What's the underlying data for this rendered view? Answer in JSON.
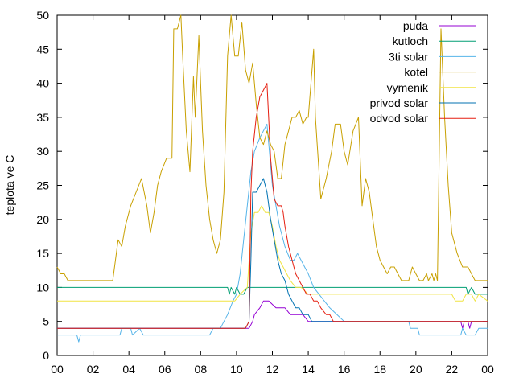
{
  "chart_data": {
    "type": "line",
    "title": "",
    "xlabel": "",
    "ylabel": "teplota ve C",
    "xlim": [
      0,
      24
    ],
    "ylim": [
      0,
      50
    ],
    "grid": false,
    "legend_position": "top-right",
    "x_tick_labels": [
      "00",
      "02",
      "04",
      "06",
      "08",
      "10",
      "12",
      "14",
      "16",
      "18",
      "20",
      "22",
      "00"
    ],
    "y_tick_labels": [
      "0",
      "5",
      "10",
      "15",
      "20",
      "25",
      "30",
      "35",
      "40",
      "45",
      "50"
    ],
    "series": [
      {
        "name": "puda",
        "color": "#9400d3",
        "points": [
          [
            0,
            4
          ],
          [
            10.7,
            4
          ],
          [
            10.9,
            5
          ],
          [
            11,
            6
          ],
          [
            11.3,
            7
          ],
          [
            11.5,
            8
          ],
          [
            11.8,
            8
          ],
          [
            12.2,
            7
          ],
          [
            12.7,
            7
          ],
          [
            13,
            6
          ],
          [
            13.7,
            6
          ],
          [
            14,
            5
          ],
          [
            22.5,
            5
          ],
          [
            22.6,
            4
          ],
          [
            22.7,
            5
          ],
          [
            22.9,
            5
          ],
          [
            23,
            4
          ],
          [
            23.1,
            5
          ],
          [
            24,
            5
          ]
        ]
      },
      {
        "name": "kutloch",
        "color": "#009e73",
        "points": [
          [
            0,
            10
          ],
          [
            9.5,
            10
          ],
          [
            9.6,
            9
          ],
          [
            9.7,
            10
          ],
          [
            9.9,
            9
          ],
          [
            10,
            10
          ],
          [
            10.2,
            9
          ],
          [
            10.4,
            9
          ],
          [
            10.6,
            10
          ],
          [
            22.8,
            10
          ],
          [
            22.9,
            9
          ],
          [
            23.1,
            10
          ],
          [
            23.3,
            9
          ],
          [
            24,
            9
          ]
        ]
      },
      {
        "name": "3ti solar",
        "color": "#56b4e9",
        "points": [
          [
            0,
            3
          ],
          [
            1.1,
            3
          ],
          [
            1.2,
            2
          ],
          [
            1.3,
            3
          ],
          [
            3.5,
            3
          ],
          [
            3.6,
            4
          ],
          [
            4.1,
            4
          ],
          [
            4.2,
            3
          ],
          [
            4.6,
            4
          ],
          [
            4.8,
            3
          ],
          [
            8.5,
            3
          ],
          [
            8.7,
            4
          ],
          [
            9.1,
            4
          ],
          [
            9.3,
            5
          ],
          [
            9.5,
            6
          ],
          [
            9.8,
            8
          ],
          [
            10,
            9
          ],
          [
            10.2,
            12
          ],
          [
            10.4,
            17
          ],
          [
            10.6,
            22
          ],
          [
            10.8,
            27
          ],
          [
            11,
            30
          ],
          [
            11.3,
            32
          ],
          [
            11.7,
            34
          ],
          [
            12,
            25
          ],
          [
            12.4,
            19
          ],
          [
            12.7,
            16
          ],
          [
            13,
            14
          ],
          [
            13.2,
            14
          ],
          [
            13.4,
            15
          ],
          [
            13.6,
            14
          ],
          [
            13.8,
            13
          ],
          [
            14,
            12
          ],
          [
            14.3,
            10
          ],
          [
            14.6,
            9
          ],
          [
            14.9,
            8
          ],
          [
            15.2,
            7
          ],
          [
            15.6,
            6
          ],
          [
            16,
            5
          ],
          [
            19.6,
            5
          ],
          [
            19.7,
            4
          ],
          [
            20.1,
            4
          ],
          [
            20.2,
            3
          ],
          [
            22.5,
            3
          ],
          [
            22.6,
            4
          ],
          [
            22.8,
            3
          ],
          [
            23.3,
            3
          ],
          [
            23.5,
            4
          ],
          [
            24,
            4
          ]
        ]
      },
      {
        "name": "kotel",
        "color": "#c8a000",
        "points": [
          [
            0,
            13
          ],
          [
            0.2,
            12
          ],
          [
            0.4,
            12
          ],
          [
            0.6,
            11
          ],
          [
            3.1,
            11
          ],
          [
            3.4,
            17
          ],
          [
            3.6,
            16
          ],
          [
            3.8,
            19
          ],
          [
            4.1,
            22
          ],
          [
            4.4,
            24
          ],
          [
            4.7,
            26
          ],
          [
            5,
            22
          ],
          [
            5.2,
            18
          ],
          [
            5.4,
            21
          ],
          [
            5.6,
            25
          ],
          [
            5.8,
            27
          ],
          [
            6.1,
            29
          ],
          [
            6.4,
            29
          ],
          [
            6.5,
            48
          ],
          [
            6.7,
            48
          ],
          [
            6.9,
            50
          ],
          [
            7,
            44
          ],
          [
            7.2,
            33
          ],
          [
            7.4,
            27
          ],
          [
            7.6,
            41
          ],
          [
            7.7,
            35
          ],
          [
            7.9,
            47
          ],
          [
            8,
            40
          ],
          [
            8.1,
            33
          ],
          [
            8.3,
            25
          ],
          [
            8.5,
            20
          ],
          [
            8.7,
            17
          ],
          [
            8.9,
            15
          ],
          [
            9.1,
            17
          ],
          [
            9.3,
            24
          ],
          [
            9.5,
            44
          ],
          [
            9.7,
            50
          ],
          [
            9.9,
            44
          ],
          [
            10.1,
            44
          ],
          [
            10.3,
            49
          ],
          [
            10.5,
            42
          ],
          [
            10.7,
            40
          ],
          [
            10.9,
            43
          ],
          [
            11.1,
            37
          ],
          [
            11.3,
            32
          ],
          [
            11.5,
            31
          ],
          [
            11.7,
            33
          ],
          [
            11.9,
            31
          ],
          [
            12.1,
            30
          ],
          [
            12.3,
            26
          ],
          [
            12.5,
            26
          ],
          [
            12.7,
            31
          ],
          [
            12.9,
            33
          ],
          [
            13.1,
            35
          ],
          [
            13.3,
            35
          ],
          [
            13.5,
            36
          ],
          [
            13.7,
            34
          ],
          [
            13.9,
            35
          ],
          [
            14,
            35
          ],
          [
            14.3,
            45
          ],
          [
            14.4,
            35
          ],
          [
            14.5,
            31
          ],
          [
            14.7,
            23
          ],
          [
            15,
            26
          ],
          [
            15.3,
            30
          ],
          [
            15.5,
            34
          ],
          [
            15.8,
            34
          ],
          [
            16,
            30
          ],
          [
            16.2,
            28
          ],
          [
            16.5,
            33
          ],
          [
            16.8,
            35
          ],
          [
            17,
            22
          ],
          [
            17.2,
            26
          ],
          [
            17.4,
            24
          ],
          [
            17.6,
            20
          ],
          [
            17.8,
            16
          ],
          [
            18,
            14
          ],
          [
            18.2,
            13
          ],
          [
            18.4,
            12
          ],
          [
            18.6,
            13
          ],
          [
            18.8,
            13
          ],
          [
            19,
            12
          ],
          [
            19.2,
            11
          ],
          [
            19.6,
            11
          ],
          [
            19.8,
            13
          ],
          [
            20,
            12
          ],
          [
            20.2,
            11
          ],
          [
            20.4,
            11
          ],
          [
            20.6,
            12
          ],
          [
            20.7,
            11
          ],
          [
            20.9,
            12
          ],
          [
            21,
            11
          ],
          [
            21.1,
            12
          ],
          [
            21.2,
            11
          ],
          [
            21.4,
            48
          ],
          [
            21.6,
            35
          ],
          [
            21.8,
            25
          ],
          [
            22,
            18
          ],
          [
            22.3,
            15
          ],
          [
            22.6,
            13
          ],
          [
            22.9,
            13
          ],
          [
            23.1,
            12
          ],
          [
            23.3,
            11
          ],
          [
            24,
            11
          ]
        ]
      },
      {
        "name": "vymenik",
        "color": "#f0e442",
        "points": [
          [
            0,
            8
          ],
          [
            9.9,
            8
          ],
          [
            10.2,
            9
          ],
          [
            10.6,
            10
          ],
          [
            10.8,
            18
          ],
          [
            11,
            21
          ],
          [
            11.2,
            21
          ],
          [
            11.4,
            22
          ],
          [
            11.6,
            21
          ],
          [
            11.8,
            21
          ],
          [
            12,
            19
          ],
          [
            12.2,
            16
          ],
          [
            12.4,
            14
          ],
          [
            12.6,
            13
          ],
          [
            12.8,
            12
          ],
          [
            13,
            11
          ],
          [
            13.3,
            10
          ],
          [
            13.6,
            10
          ],
          [
            14,
            9
          ],
          [
            22,
            9
          ],
          [
            22.2,
            8
          ],
          [
            22.6,
            8
          ],
          [
            22.8,
            9
          ],
          [
            23.1,
            9
          ],
          [
            23.3,
            8
          ],
          [
            23.5,
            9
          ],
          [
            24,
            8
          ]
        ]
      },
      {
        "name": "privod solar",
        "color": "#0072b2",
        "points": [
          [
            0,
            4
          ],
          [
            10.5,
            4
          ],
          [
            10.7,
            5
          ],
          [
            10.8,
            14
          ],
          [
            10.9,
            24
          ],
          [
            11.1,
            24
          ],
          [
            11.3,
            25
          ],
          [
            11.5,
            26
          ],
          [
            11.7,
            24
          ],
          [
            11.9,
            20
          ],
          [
            12.1,
            17
          ],
          [
            12.3,
            14
          ],
          [
            12.5,
            12
          ],
          [
            12.7,
            11
          ],
          [
            12.9,
            9
          ],
          [
            13.1,
            8
          ],
          [
            13.3,
            7
          ],
          [
            13.5,
            7
          ],
          [
            13.7,
            6
          ],
          [
            14,
            6
          ],
          [
            14.2,
            5
          ],
          [
            24,
            5
          ]
        ]
      },
      {
        "name": "odvod solar",
        "color": "#e51e10",
        "points": [
          [
            0,
            4
          ],
          [
            10.5,
            4
          ],
          [
            10.7,
            5
          ],
          [
            10.8,
            24
          ],
          [
            10.9,
            30
          ],
          [
            11.1,
            35
          ],
          [
            11.3,
            38
          ],
          [
            11.5,
            39
          ],
          [
            11.7,
            40
          ],
          [
            11.9,
            29
          ],
          [
            12.1,
            23
          ],
          [
            12.3,
            22
          ],
          [
            12.5,
            22
          ],
          [
            12.6,
            21
          ],
          [
            12.7,
            19
          ],
          [
            12.9,
            16
          ],
          [
            13.1,
            14
          ],
          [
            13.3,
            12
          ],
          [
            13.5,
            11
          ],
          [
            13.7,
            10
          ],
          [
            13.9,
            9
          ],
          [
            14.1,
            9
          ],
          [
            14.3,
            8
          ],
          [
            14.5,
            8
          ],
          [
            14.7,
            7
          ],
          [
            15,
            6
          ],
          [
            15.2,
            6
          ],
          [
            15.4,
            5
          ],
          [
            24,
            5
          ]
        ]
      }
    ]
  }
}
